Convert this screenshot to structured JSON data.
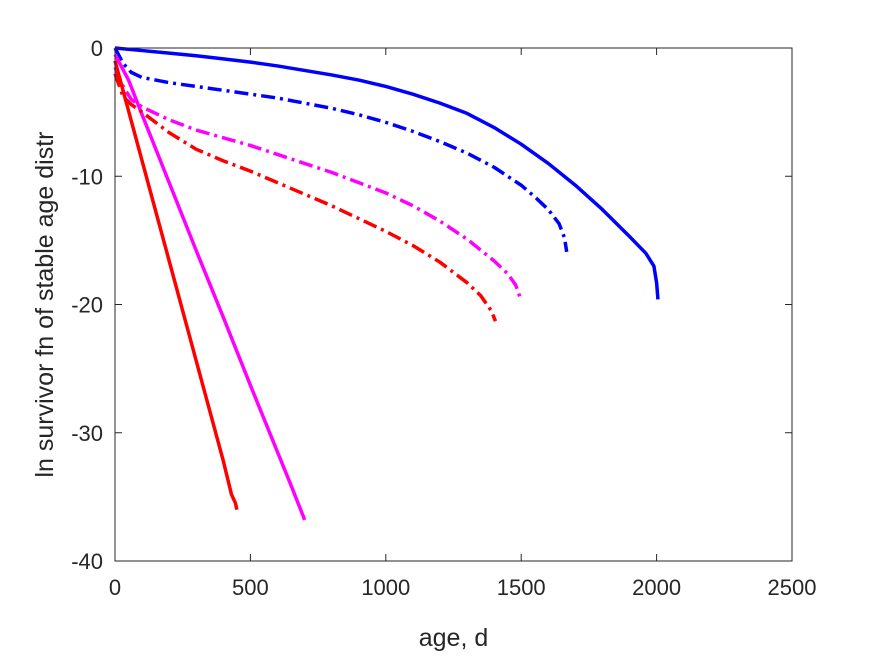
{
  "chart_data": {
    "type": "line",
    "title": "",
    "xlabel": "age, d",
    "ylabel": "ln survivor fn of stable age distr",
    "xlim": [
      0,
      2500
    ],
    "ylim": [
      -40,
      0
    ],
    "xticks": [
      0,
      500,
      1000,
      1500,
      2000,
      2500
    ],
    "xtick_labels": [
      "0",
      "500",
      "1000",
      "1500",
      "2000",
      "2500"
    ],
    "yticks": [
      0,
      -10,
      -20,
      -30,
      -40
    ],
    "ytick_labels": [
      "0",
      "-10",
      "-20",
      "-30",
      "-40"
    ],
    "grid": false,
    "legend": "none",
    "series": [
      {
        "color": "#0000ff",
        "style": "solid",
        "x": [
          0,
          100,
          200,
          300,
          400,
          500,
          600,
          700,
          800,
          900,
          1000,
          1100,
          1200,
          1300,
          1400,
          1500,
          1600,
          1700,
          1800,
          1900,
          1960,
          1990,
          2000,
          2005
        ],
        "y": [
          0,
          -0.2,
          -0.4,
          -0.6,
          -0.85,
          -1.1,
          -1.4,
          -1.75,
          -2.1,
          -2.5,
          -3.0,
          -3.6,
          -4.3,
          -5.1,
          -6.2,
          -7.5,
          -9.0,
          -10.7,
          -12.6,
          -14.7,
          -16.0,
          -17.0,
          -18.3,
          -19.6
        ]
      },
      {
        "color": "#0000ff",
        "style": "dashdot",
        "x": [
          0,
          30,
          60,
          100,
          200,
          300,
          400,
          500,
          600,
          700,
          800,
          900,
          1000,
          1100,
          1200,
          1300,
          1400,
          1500,
          1550,
          1600,
          1640,
          1660,
          1668
        ],
        "y": [
          0,
          -1.2,
          -1.9,
          -2.3,
          -2.7,
          -3.0,
          -3.3,
          -3.6,
          -3.9,
          -4.3,
          -4.7,
          -5.2,
          -5.8,
          -6.5,
          -7.3,
          -8.2,
          -9.3,
          -10.7,
          -11.6,
          -12.6,
          -13.7,
          -14.8,
          -15.9
        ]
      },
      {
        "color": "#ff00ff",
        "style": "solid",
        "x": [
          0,
          50,
          100,
          200,
          300,
          400,
          500,
          600,
          650,
          680,
          695,
          700
        ],
        "y": [
          -0.5,
          -2.5,
          -5.2,
          -10.5,
          -15.8,
          -21.0,
          -26.3,
          -31.5,
          -34.1,
          -35.7,
          -36.5,
          -36.8
        ]
      },
      {
        "color": "#ff00ff",
        "style": "dashdot",
        "x": [
          0,
          30,
          60,
          100,
          200,
          300,
          400,
          500,
          600,
          700,
          800,
          900,
          1000,
          1100,
          1200,
          1300,
          1400,
          1450,
          1480,
          1495
        ],
        "y": [
          -1.5,
          -3.0,
          -4.0,
          -4.6,
          -5.6,
          -6.4,
          -7.0,
          -7.6,
          -8.3,
          -9.0,
          -9.7,
          -10.5,
          -11.3,
          -12.3,
          -13.5,
          -14.9,
          -16.6,
          -17.6,
          -18.5,
          -19.4
        ]
      },
      {
        "color": "#ff0000",
        "style": "solid",
        "x": [
          0,
          50,
          100,
          200,
          300,
          400,
          430,
          445,
          450
        ],
        "y": [
          -1.0,
          -4.9,
          -8.8,
          -16.6,
          -24.4,
          -32.2,
          -34.8,
          -35.5,
          -36.0
        ]
      },
      {
        "color": "#ff0000",
        "style": "dashdot",
        "x": [
          0,
          30,
          60,
          100,
          200,
          300,
          400,
          500,
          600,
          700,
          800,
          900,
          1000,
          1100,
          1200,
          1300,
          1350,
          1390,
          1405
        ],
        "y": [
          -2.0,
          -3.8,
          -4.4,
          -5.0,
          -6.6,
          -7.9,
          -8.8,
          -9.6,
          -10.5,
          -11.4,
          -12.3,
          -13.3,
          -14.3,
          -15.4,
          -16.7,
          -18.3,
          -19.3,
          -20.5,
          -21.3
        ]
      }
    ]
  }
}
